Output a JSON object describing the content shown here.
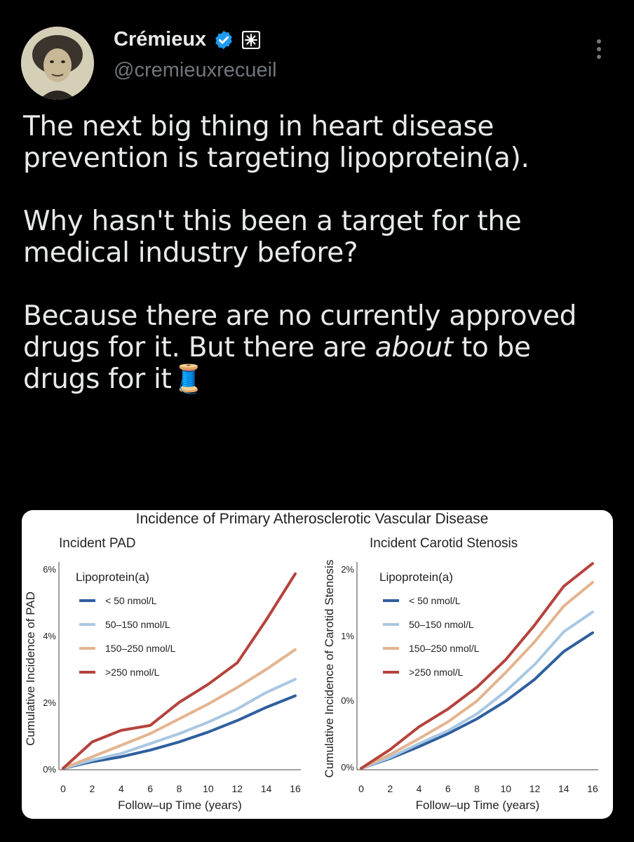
{
  "author": {
    "name": "Crémieux",
    "handle": "@cremieuxrecueil",
    "verified": true
  },
  "post": {
    "line1": "The next big thing in heart disease",
    "line2": "prevention is targeting lipoprotein(a).",
    "line3": "Why hasn't this been a target for the",
    "line4": "medical industry before?",
    "line5": "Because there are no currently approved",
    "line6a": "drugs for it. But there are ",
    "line6b": "about",
    "line6c": " to be",
    "line7": "drugs for it",
    "emoji": "🧵"
  },
  "colors": {
    "lt50": "#2f5f9e",
    "b50_150": "#a9c7e2",
    "b150_250": "#e3b48f",
    "gt250": "#b5433c"
  },
  "chart_data": [
    {
      "type": "line",
      "figure_title": "Incidence of Primary Atherosclerotic Vascular Disease",
      "title": "Incident PAD",
      "xlabel": "Follow–up Time (years)",
      "ylabel": "Cumulative Incidence of PAD",
      "xlim": [
        0,
        16
      ],
      "ylim": [
        0,
        6
      ],
      "xticks": [
        "0",
        "2",
        "4",
        "6",
        "8",
        "10",
        "12",
        "14",
        "16"
      ],
      "yticks": [
        "0%",
        "2%",
        "4%",
        "6%"
      ],
      "legend_title": "Lipoprotein(a)",
      "legend_placement": "top-left",
      "x": [
        0,
        2,
        4,
        6,
        8,
        10,
        12,
        14,
        16
      ],
      "series": [
        {
          "name": "< 50 nmol/L",
          "color_key": "lt50",
          "values": [
            0,
            0.2,
            0.35,
            0.55,
            0.8,
            1.1,
            1.45,
            1.85,
            2.2
          ]
        },
        {
          "name": "50–150 nmol/L",
          "color_key": "b50_150",
          "values": [
            0,
            0.25,
            0.45,
            0.75,
            1.05,
            1.4,
            1.8,
            2.3,
            2.7
          ]
        },
        {
          "name": "150–250 nmol/L",
          "color_key": "b150_250",
          "values": [
            0,
            0.35,
            0.7,
            1.05,
            1.5,
            1.95,
            2.45,
            3.0,
            3.6
          ]
        },
        {
          "name": ">250 nmol/L",
          "color_key": "gt250",
          "values": [
            0,
            0.8,
            1.15,
            1.3,
            2.0,
            2.55,
            3.2,
            4.5,
            5.9
          ]
        }
      ]
    },
    {
      "type": "line",
      "title": "Incident Carotid Stenosis",
      "xlabel": "Follow–up Time (years)",
      "ylabel": "Cumulative Incidence of Carotid Stenosis",
      "xlim": [
        0,
        16
      ],
      "ylim": [
        0,
        2
      ],
      "xticks": [
        "0",
        "2",
        "4",
        "6",
        "8",
        "10",
        "12",
        "14",
        "16"
      ],
      "yticks": [
        "0%",
        "0%",
        "1%",
        "2%"
      ],
      "legend_title": "Lipoprotein(a)",
      "legend_placement": "top-left",
      "x": [
        0,
        2,
        4,
        6,
        8,
        10,
        12,
        14,
        16
      ],
      "series": [
        {
          "name": "< 50 nmol/L",
          "color_key": "lt50",
          "values": [
            0,
            0.1,
            0.22,
            0.35,
            0.5,
            0.68,
            0.9,
            1.18,
            1.37
          ]
        },
        {
          "name": "50–150 nmol/L",
          "color_key": "b50_150",
          "values": [
            0,
            0.11,
            0.25,
            0.38,
            0.55,
            0.78,
            1.05,
            1.38,
            1.58
          ]
        },
        {
          "name": "150–250 nmol/L",
          "color_key": "b150_250",
          "values": [
            0,
            0.14,
            0.3,
            0.47,
            0.68,
            0.97,
            1.28,
            1.64,
            1.88
          ]
        },
        {
          "name": ">250 nmol/L",
          "color_key": "gt250",
          "values": [
            0,
            0.19,
            0.42,
            0.6,
            0.82,
            1.1,
            1.45,
            1.84,
            2.07
          ]
        }
      ]
    }
  ]
}
